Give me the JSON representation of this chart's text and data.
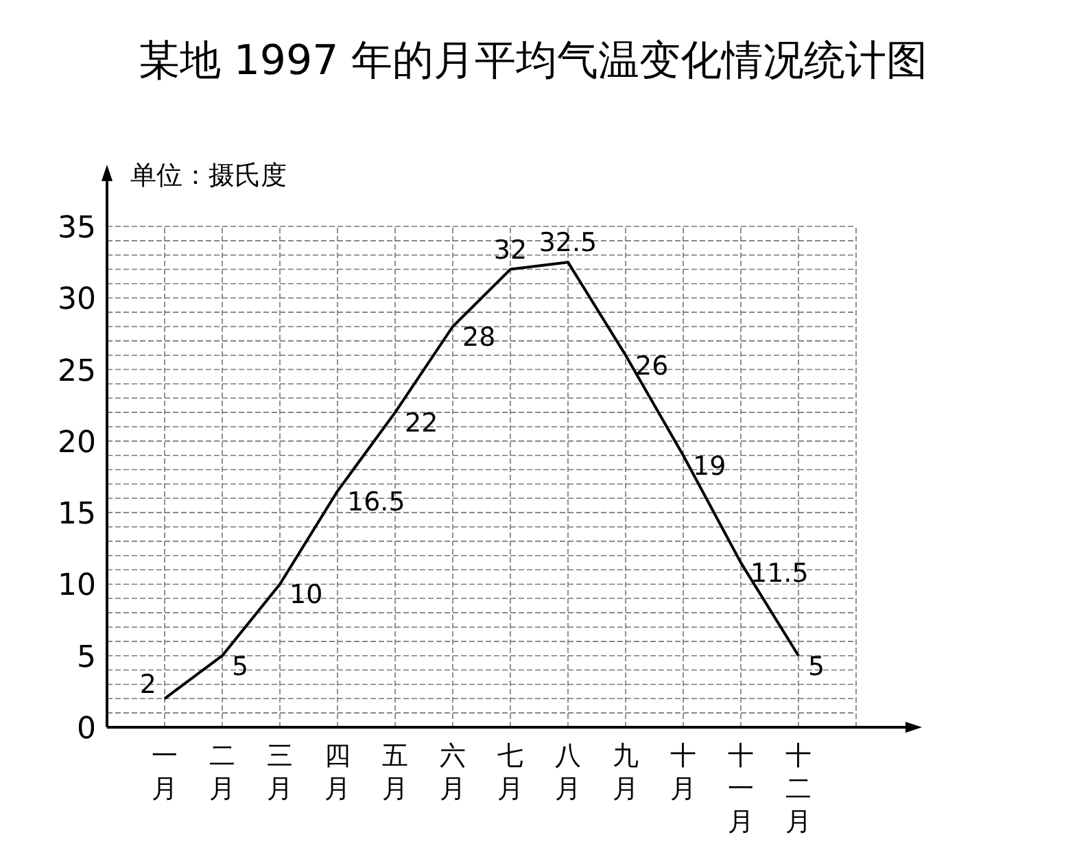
{
  "chart_data": {
    "type": "line",
    "title": "某地 1997 年的月平均气温变化情况统计图",
    "ylabel": "单位：摄氏度",
    "categories": [
      "一月",
      "二月",
      "三月",
      "四月",
      "五月",
      "六月",
      "七月",
      "八月",
      "九月",
      "十月",
      "十一月",
      "十二月"
    ],
    "values": [
      2,
      5,
      10,
      16.5,
      22,
      28,
      32,
      32.5,
      26,
      19,
      11.5,
      5
    ],
    "color": "#000000",
    "ylim": [
      0,
      35
    ],
    "yticks": [
      0,
      5,
      10,
      15,
      20,
      25,
      30,
      35
    ],
    "grid": true,
    "data_labels": true,
    "marker": "none",
    "line_style": "solid"
  }
}
